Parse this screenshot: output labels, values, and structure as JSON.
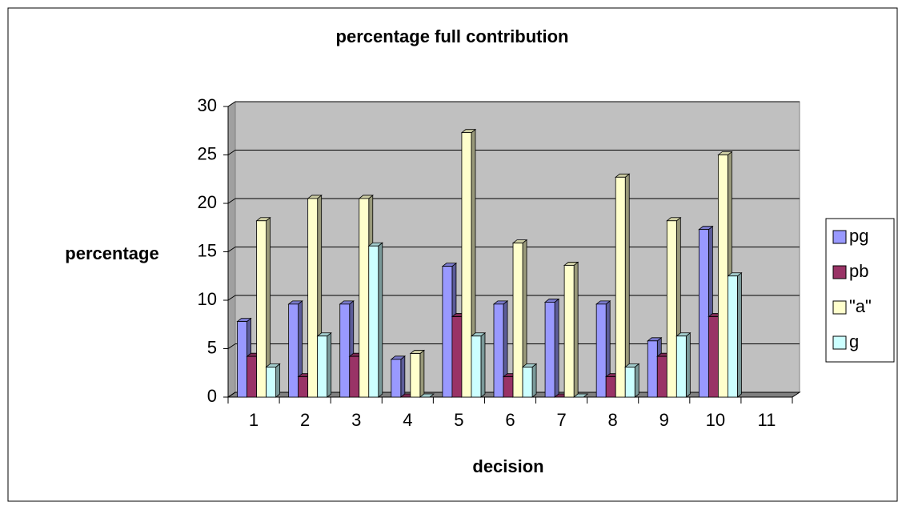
{
  "chart_data": {
    "type": "bar3d",
    "title": "percentage full contribution",
    "x_label": "decision",
    "y_label": "percentage",
    "categories": [
      "1",
      "2",
      "3",
      "4",
      "5",
      "6",
      "7",
      "8",
      "9",
      "10",
      "11"
    ],
    "series": [
      {
        "name": "pg",
        "color": "#9999ff",
        "values": [
          7.8,
          9.6,
          9.6,
          3.9,
          13.5,
          9.6,
          9.8,
          9.6,
          5.8,
          17.3,
          null
        ]
      },
      {
        "name": "pb",
        "color": "#993366",
        "values": [
          4.2,
          2.1,
          4.2,
          0,
          8.3,
          2.1,
          0,
          2.1,
          4.2,
          8.3,
          null
        ]
      },
      {
        "name": "\"a\"",
        "color": "#ffffcc",
        "values": [
          18.2,
          20.5,
          20.5,
          4.5,
          27.3,
          15.9,
          13.6,
          22.7,
          18.2,
          25,
          null
        ]
      },
      {
        "name": "g",
        "color": "#ccffff",
        "values": [
          3.1,
          6.3,
          15.6,
          0,
          6.3,
          3.1,
          0,
          3.1,
          6.3,
          12.5,
          null
        ]
      }
    ],
    "ylim": [
      0,
      30
    ],
    "yticks": [
      0,
      5,
      10,
      15,
      20,
      25,
      30
    ],
    "grid": true,
    "legend": "right"
  }
}
